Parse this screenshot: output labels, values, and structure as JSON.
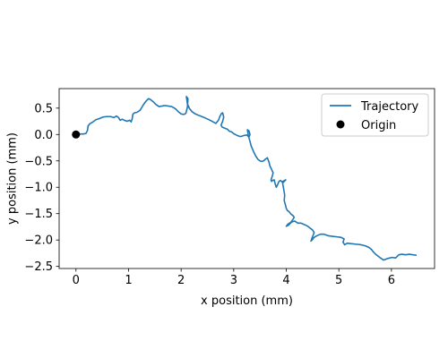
{
  "chart_data": {
    "type": "line",
    "title": "",
    "xlabel": "x position (mm)",
    "ylabel": "y position (mm)",
    "xlim": [
      -0.32,
      6.82
    ],
    "ylim": [
      -2.54,
      0.87
    ],
    "xticks": [
      0,
      1,
      2,
      3,
      4,
      5,
      6
    ],
    "xtick_labels": [
      "0",
      "1",
      "2",
      "3",
      "4",
      "5",
      "6"
    ],
    "yticks": [
      0.5,
      0.0,
      -0.5,
      -1.0,
      -1.5,
      -2.0,
      -2.5
    ],
    "ytick_labels": [
      "0.5",
      "0.0",
      "−0.5",
      "−1.0",
      "−1.5",
      "−2.0",
      "−2.5"
    ],
    "grid": false,
    "legend_position": "upper right",
    "series": [
      {
        "name": "Trajectory",
        "kind": "line",
        "color": "#1f77b4",
        "x": [
          0.0,
          0.04,
          0.09,
          0.14,
          0.19,
          0.22,
          0.23,
          0.26,
          0.31,
          0.38,
          0.44,
          0.51,
          0.58,
          0.66,
          0.72,
          0.77,
          0.81,
          0.84,
          0.88,
          0.92,
          0.97,
          1.02,
          1.05,
          1.07,
          1.08,
          1.11,
          1.16,
          1.22,
          1.28,
          1.33,
          1.38,
          1.42,
          1.47,
          1.52,
          1.58,
          1.64,
          1.69,
          1.75,
          1.82,
          1.89,
          1.95,
          2.0,
          2.05,
          2.09,
          2.12,
          2.13,
          2.1,
          2.12,
          2.16,
          2.21,
          2.27,
          2.34,
          2.42,
          2.51,
          2.59,
          2.66,
          2.71,
          2.74,
          2.77,
          2.79,
          2.81,
          2.79,
          2.76,
          2.78,
          2.83,
          2.88,
          2.92,
          2.96,
          3.01,
          3.07,
          3.13,
          3.19,
          3.25,
          3.29,
          3.31,
          3.29,
          3.26,
          3.28,
          3.31,
          3.33,
          3.35,
          3.38,
          3.42,
          3.46,
          3.5,
          3.53,
          3.57,
          3.6,
          3.64,
          3.67,
          3.69,
          3.72,
          3.75,
          3.73,
          3.71,
          3.72,
          3.74,
          3.77,
          3.79,
          3.81,
          3.84,
          3.86,
          3.89,
          3.92,
          3.95,
          3.99,
          3.93,
          3.95,
          3.97,
          3.96,
          3.98,
          4.0,
          4.02,
          4.05,
          4.09,
          4.13,
          4.15,
          4.12,
          4.08,
          4.03,
          4.0,
          4.04,
          4.1,
          4.16,
          4.22,
          4.28,
          4.35,
          4.41,
          4.46,
          4.5,
          4.53,
          4.51,
          4.49,
          4.47,
          4.49,
          4.53,
          4.58,
          4.65,
          4.72,
          4.8,
          4.88,
          4.96,
          5.04,
          5.1,
          5.08,
          5.11,
          5.16,
          5.24,
          5.33,
          5.42,
          5.5,
          5.57,
          5.62,
          5.66,
          5.7,
          5.74,
          5.79,
          5.85,
          5.93,
          6.01,
          6.08,
          6.14,
          6.2,
          6.27,
          6.34,
          6.41,
          6.48
        ],
        "y": [
          0.0,
          0.0,
          0.01,
          0.01,
          0.02,
          0.08,
          0.16,
          0.2,
          0.23,
          0.28,
          0.3,
          0.33,
          0.34,
          0.34,
          0.32,
          0.35,
          0.32,
          0.27,
          0.29,
          0.27,
          0.25,
          0.27,
          0.24,
          0.3,
          0.38,
          0.41,
          0.42,
          0.46,
          0.56,
          0.63,
          0.68,
          0.66,
          0.62,
          0.57,
          0.53,
          0.54,
          0.55,
          0.54,
          0.53,
          0.49,
          0.43,
          0.39,
          0.38,
          0.4,
          0.52,
          0.68,
          0.72,
          0.58,
          0.49,
          0.43,
          0.39,
          0.36,
          0.33,
          0.29,
          0.25,
          0.21,
          0.27,
          0.35,
          0.4,
          0.41,
          0.33,
          0.25,
          0.18,
          0.14,
          0.12,
          0.1,
          0.06,
          0.05,
          0.01,
          -0.02,
          -0.04,
          -0.02,
          -0.01,
          -0.05,
          0.0,
          0.07,
          0.09,
          -0.03,
          -0.13,
          -0.21,
          -0.26,
          -0.33,
          -0.41,
          -0.47,
          -0.5,
          -0.51,
          -0.5,
          -0.47,
          -0.44,
          -0.52,
          -0.6,
          -0.66,
          -0.73,
          -0.8,
          -0.86,
          -0.89,
          -0.87,
          -0.86,
          -0.94,
          -1.0,
          -0.94,
          -0.89,
          -0.87,
          -0.9,
          -0.88,
          -0.86,
          -0.92,
          -1.03,
          -1.15,
          -1.25,
          -1.32,
          -1.4,
          -1.44,
          -1.46,
          -1.51,
          -1.54,
          -1.57,
          -1.62,
          -1.67,
          -1.7,
          -1.74,
          -1.72,
          -1.66,
          -1.64,
          -1.68,
          -1.68,
          -1.71,
          -1.74,
          -1.78,
          -1.81,
          -1.86,
          -1.91,
          -1.96,
          -2.02,
          -2.0,
          -1.95,
          -1.92,
          -1.89,
          -1.89,
          -1.92,
          -1.93,
          -1.94,
          -1.95,
          -1.98,
          -2.04,
          -2.09,
          -2.06,
          -2.07,
          -2.08,
          -2.09,
          -2.11,
          -2.14,
          -2.18,
          -2.23,
          -2.27,
          -2.3,
          -2.34,
          -2.38,
          -2.35,
          -2.33,
          -2.34,
          -2.28,
          -2.27,
          -2.28,
          -2.27,
          -2.28,
          -2.29
        ]
      },
      {
        "name": "Origin",
        "kind": "marker",
        "color": "#000000",
        "x": [
          0.0
        ],
        "y": [
          0.0
        ]
      }
    ]
  }
}
